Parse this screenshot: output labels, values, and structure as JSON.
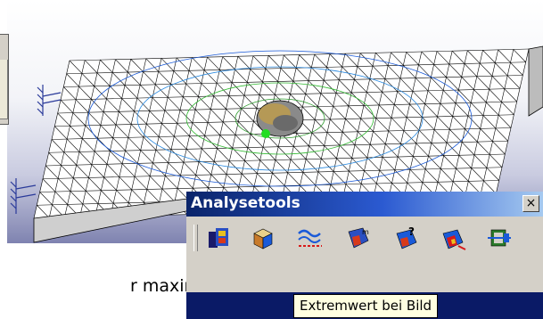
{
  "toolbar": {
    "title": "Analysetools",
    "close_glyph": "×",
    "buttons": [
      {
        "icon": "image-layout-icon",
        "color": "#2a4fc2"
      },
      {
        "icon": "display-cube-icon",
        "color": "#c87a2a"
      },
      {
        "icon": "deformation-icon",
        "color": "#1a5ad8"
      },
      {
        "icon": "extremum-icon",
        "color": "#d83a1a"
      },
      {
        "icon": "info-icon",
        "color": "#1a5ad8"
      },
      {
        "icon": "animate-icon",
        "color": "#d81a1a"
      },
      {
        "icon": "cut-plane-icon",
        "color": "#2a7a2a"
      }
    ]
  },
  "tooltip": {
    "text": "Extremwert bei Bild"
  },
  "caption": {
    "text": "r maximalen"
  },
  "colors": {
    "titlebar": "#0a246a",
    "toolbar_bg": "#d4d0c8",
    "tooltip_bg": "#ffffe1",
    "mesh_line": "#000000",
    "viewport_bottom": "#7f83b0"
  }
}
